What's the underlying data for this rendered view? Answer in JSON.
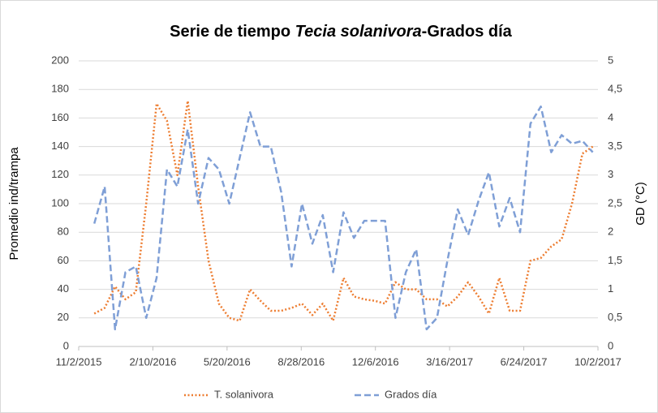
{
  "chart_data": {
    "type": "line",
    "title": [
      "Serie de tiempo ",
      "Tecia solanivora",
      "-Grados día"
    ],
    "y_label": "Promedio ind/trampa",
    "y2_label": "GD (°C)",
    "x": [
      "11/23/2015",
      "12/7/2015",
      "12/21/2015",
      "1/4/2016",
      "1/18/2016",
      "2/1/2016",
      "2/15/2016",
      "2/29/2016",
      "3/14/2016",
      "3/28/2016",
      "4/11/2016",
      "4/25/2016",
      "5/9/2016",
      "5/23/2016",
      "6/6/2016",
      "6/20/2016",
      "7/4/2016",
      "7/18/2016",
      "8/1/2016",
      "8/15/2016",
      "8/29/2016",
      "9/12/2016",
      "9/26/2016",
      "10/10/2016",
      "10/24/2016",
      "11/7/2016",
      "11/21/2016",
      "12/5/2016",
      "12/19/2016",
      "1/2/2017",
      "1/16/2017",
      "1/30/2017",
      "2/13/2017",
      "2/27/2017",
      "3/13/2017",
      "3/27/2017",
      "4/10/2017",
      "4/24/2017",
      "5/8/2017",
      "5/22/2017",
      "6/5/2017",
      "6/19/2017",
      "7/3/2017",
      "7/17/2017",
      "7/31/2017",
      "8/14/2017",
      "8/28/2017",
      "9/11/2017",
      "9/25/2017"
    ],
    "series": [
      {
        "name": "T. solanivora",
        "color": "#ed7d31",
        "axis": "y",
        "style": "dotted",
        "values": [
          23,
          27,
          42,
          33,
          38,
          100,
          170,
          158,
          120,
          172,
          112,
          60,
          30,
          20,
          18,
          40,
          32,
          25,
          25,
          27,
          30,
          22,
          30,
          18,
          48,
          35,
          33,
          32,
          30,
          45,
          40,
          40,
          33,
          33,
          28,
          35,
          45,
          35,
          23,
          48,
          25,
          25,
          60,
          62,
          70,
          75,
          100,
          135,
          140
        ]
      },
      {
        "name": "Grados día",
        "color": "#7f9fd6",
        "axis": "y2",
        "style": "dashed",
        "values": [
          2.15,
          2.8,
          0.3,
          1.3,
          1.4,
          0.5,
          1.2,
          3.1,
          2.8,
          3.8,
          2.5,
          3.3,
          3.1,
          2.5,
          3.3,
          4.1,
          3.5,
          3.5,
          2.7,
          1.4,
          2.5,
          1.8,
          2.3,
          1.3,
          2.35,
          1.9,
          2.2,
          2.2,
          2.2,
          0.5,
          1.3,
          1.7,
          0.3,
          0.5,
          1.5,
          2.4,
          1.95,
          2.55,
          3.05,
          2.1,
          2.6,
          2.0,
          3.9,
          4.2,
          3.4,
          3.7,
          3.55,
          3.6,
          3.4
        ]
      }
    ],
    "xlim": [
      "11/2/2015",
      "10/2/2017"
    ],
    "xticks": [
      "11/2/2015",
      "2/10/2016",
      "5/20/2016",
      "8/28/2016",
      "12/6/2016",
      "3/16/2017",
      "6/24/2017",
      "10/2/2017"
    ],
    "ylim": [
      0,
      200
    ],
    "yticks": [
      0,
      20,
      40,
      60,
      80,
      100,
      120,
      140,
      160,
      180,
      200
    ],
    "y2lim": [
      0,
      5
    ],
    "y2ticks": [
      0,
      {
        "value": 0.5,
        "label": "0,5"
      },
      1,
      {
        "value": 1.5,
        "label": "1,5"
      },
      2,
      {
        "value": 2.5,
        "label": "2,5"
      },
      3,
      {
        "value": 3.5,
        "label": "3,5"
      },
      4,
      {
        "value": 4.5,
        "label": "4,5"
      },
      5
    ],
    "grid": true,
    "legend": "bottom"
  }
}
